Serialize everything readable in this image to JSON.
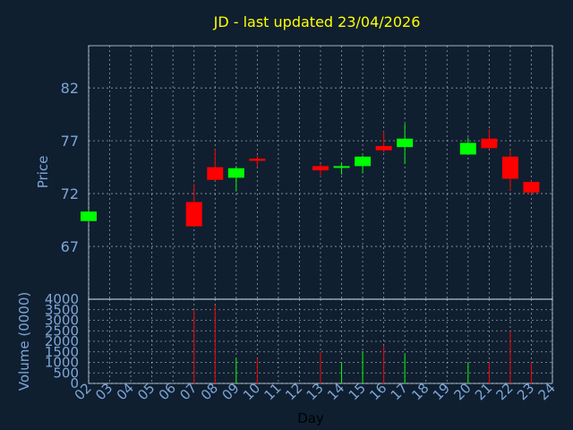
{
  "chart_data": {
    "type": "candlestick",
    "title": "JD - last updated 23/04/2026",
    "xlabel": "Day",
    "price_ylabel": "Price",
    "volume_ylabel": "Volume (0000)",
    "x_ticks": [
      "02",
      "03",
      "04",
      "05",
      "06",
      "07",
      "08",
      "09",
      "10",
      "11",
      "12",
      "13",
      "14",
      "15",
      "16",
      "17",
      "18",
      "19",
      "20",
      "21",
      "22",
      "23",
      "24"
    ],
    "price_ylim": [
      62,
      86
    ],
    "price_ticks": [
      67,
      72,
      77,
      82
    ],
    "volume_ylim": [
      0,
      4000
    ],
    "volume_ticks": [
      0,
      500,
      1000,
      1500,
      2000,
      2500,
      3000,
      3500,
      4000
    ],
    "colors": {
      "up": "#00ff00",
      "down": "#ff0000",
      "background": "#0f1f30",
      "grid": "#ffffff",
      "text": "#7ea6d8",
      "title": "#ffff00"
    },
    "candles": [
      {
        "day": "02",
        "open": 69.4,
        "close": 70.3,
        "high": 70.4,
        "low": 69.3,
        "volume": 0
      },
      {
        "day": "07",
        "open": 71.2,
        "close": 68.9,
        "high": 72.9,
        "low": 68.9,
        "volume": 3500
      },
      {
        "day": "08",
        "open": 74.5,
        "close": 73.3,
        "high": 76.2,
        "low": 73.2,
        "volume": 3700
      },
      {
        "day": "09",
        "open": 73.5,
        "close": 74.4,
        "high": 74.6,
        "low": 72.2,
        "volume": 1200
      },
      {
        "day": "10",
        "open": 75.3,
        "close": 75.1,
        "high": 75.6,
        "low": 74.5,
        "volume": 1200
      },
      {
        "day": "13",
        "open": 74.6,
        "close": 74.2,
        "high": 74.8,
        "low": 73.6,
        "volume": 1500
      },
      {
        "day": "14",
        "open": 74.5,
        "close": 74.6,
        "high": 74.9,
        "low": 73.8,
        "volume": 1000
      },
      {
        "day": "15",
        "open": 74.6,
        "close": 75.5,
        "high": 75.6,
        "low": 73.9,
        "volume": 1500
      },
      {
        "day": "16",
        "open": 76.5,
        "close": 76.1,
        "high": 77.9,
        "low": 75.9,
        "volume": 1800
      },
      {
        "day": "17",
        "open": 76.4,
        "close": 77.2,
        "high": 78.6,
        "low": 74.8,
        "volume": 1400
      },
      {
        "day": "20",
        "open": 75.7,
        "close": 76.8,
        "high": 77.3,
        "low": 75.7,
        "volume": 1000
      },
      {
        "day": "21",
        "open": 77.2,
        "close": 76.3,
        "high": 78.1,
        "low": 76.2,
        "volume": 1000
      },
      {
        "day": "22",
        "open": 75.5,
        "close": 73.4,
        "high": 76.1,
        "low": 72.3,
        "volume": 2500
      },
      {
        "day": "23",
        "open": 73.1,
        "close": 72.1,
        "high": 73.2,
        "low": 71.9,
        "volume": 1000
      }
    ]
  }
}
